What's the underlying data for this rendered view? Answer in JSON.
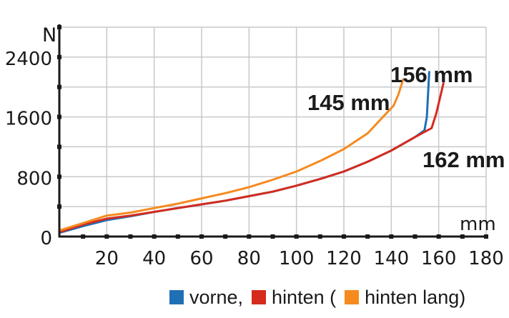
{
  "chart_data": {
    "type": "line",
    "ylabel": "N",
    "xlabel": "mm",
    "xlim": [
      0,
      180
    ],
    "ylim": [
      0,
      2800
    ],
    "x_ticks": [
      20,
      40,
      60,
      80,
      100,
      120,
      140,
      160,
      180
    ],
    "y_ticks": [
      0,
      800,
      1600,
      2400
    ],
    "grid": true,
    "legend_position": "bottom-right",
    "series": [
      {
        "name": "vorne,",
        "color": "#1f6fb5",
        "points": [
          [
            0,
            50
          ],
          [
            10,
            140
          ],
          [
            20,
            220
          ],
          [
            30,
            270
          ],
          [
            40,
            330
          ],
          [
            50,
            380
          ],
          [
            60,
            430
          ],
          [
            70,
            480
          ],
          [
            80,
            540
          ],
          [
            90,
            600
          ],
          [
            100,
            680
          ],
          [
            110,
            770
          ],
          [
            120,
            870
          ],
          [
            130,
            1000
          ],
          [
            140,
            1150
          ],
          [
            150,
            1330
          ],
          [
            154,
            1420
          ],
          [
            155,
            1600
          ],
          [
            156,
            2200
          ]
        ]
      },
      {
        "name": "hinten (",
        "color": "#d42b1e",
        "points": [
          [
            0,
            60
          ],
          [
            10,
            160
          ],
          [
            20,
            240
          ],
          [
            30,
            280
          ],
          [
            40,
            330
          ],
          [
            50,
            380
          ],
          [
            60,
            430
          ],
          [
            70,
            480
          ],
          [
            80,
            540
          ],
          [
            90,
            600
          ],
          [
            100,
            680
          ],
          [
            110,
            770
          ],
          [
            120,
            870
          ],
          [
            130,
            1000
          ],
          [
            140,
            1150
          ],
          [
            150,
            1330
          ],
          [
            157,
            1450
          ],
          [
            159,
            1650
          ],
          [
            162,
            2050
          ]
        ]
      },
      {
        "name": "hinten lang)",
        "color": "#f58a1f",
        "points": [
          [
            0,
            80
          ],
          [
            10,
            180
          ],
          [
            20,
            280
          ],
          [
            30,
            320
          ],
          [
            40,
            380
          ],
          [
            50,
            440
          ],
          [
            60,
            510
          ],
          [
            70,
            580
          ],
          [
            80,
            660
          ],
          [
            90,
            760
          ],
          [
            100,
            870
          ],
          [
            110,
            1010
          ],
          [
            120,
            1170
          ],
          [
            130,
            1380
          ],
          [
            138,
            1650
          ],
          [
            141,
            1750
          ],
          [
            143,
            1900
          ],
          [
            145,
            2100
          ]
        ]
      }
    ],
    "annotations": [
      "156 mm",
      "145 mm",
      "162 mm"
    ]
  },
  "legend": {
    "items": [
      {
        "label": "vorne,",
        "color": "#1f6fb5"
      },
      {
        "label": "hinten (",
        "color": "#d42b1e"
      },
      {
        "label": "hinten lang)",
        "color": "#f58a1f"
      }
    ]
  }
}
